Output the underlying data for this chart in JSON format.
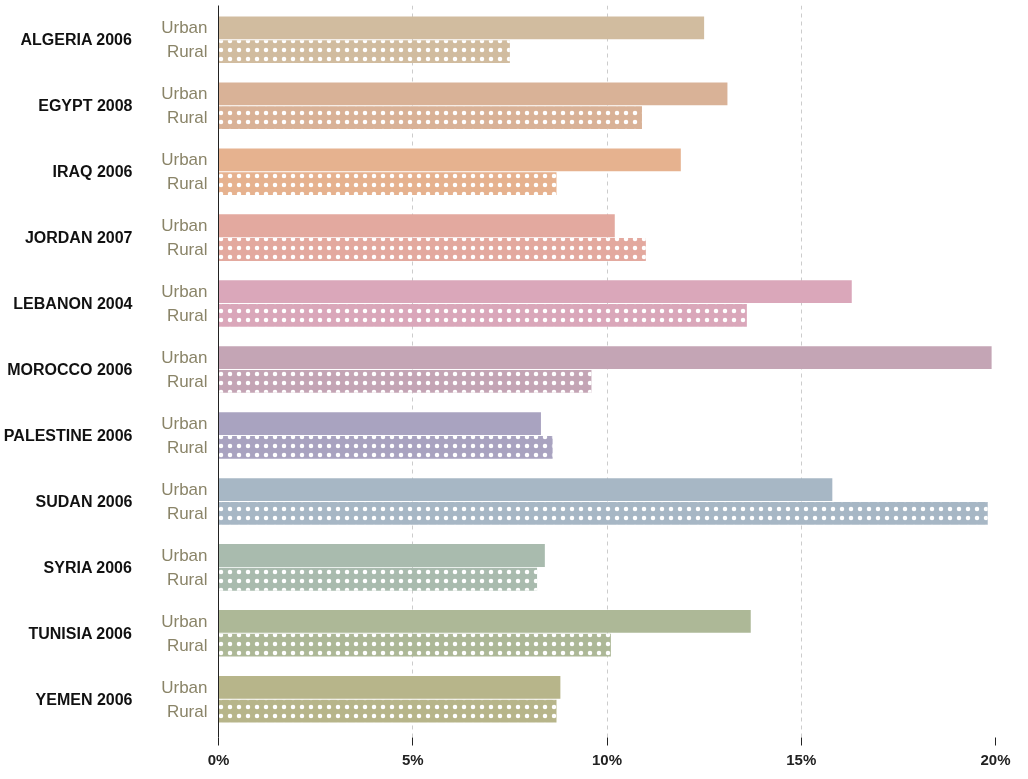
{
  "chart_data": {
    "type": "bar",
    "orientation": "horizontal",
    "categories": [
      "ALGERIA 2006",
      "EGYPT 2008",
      "IRAQ 2006",
      "JORDAN 2007",
      "LEBANON 2004",
      "MOROCCO 2006",
      "PALESTINE 2006",
      "SUDAN 2006",
      "SYRIA 2006",
      "TUNISIA 2006",
      "YEMEN 2006"
    ],
    "series": [
      {
        "name": "Urban",
        "colors": [
          "#d1bc9f",
          "#d9b297",
          "#e6b28f",
          "#e3a99f",
          "#daa7ba",
          "#c4a5b5",
          "#a9a3c0",
          "#a7b7c5",
          "#a9bbae",
          "#adb897",
          "#b7b58a"
        ],
        "values": [
          12.5,
          13.1,
          11.9,
          10.2,
          16.3,
          19.9,
          8.3,
          15.8,
          8.4,
          13.7,
          8.8
        ]
      },
      {
        "name": "Rural",
        "colors": [
          "#d1bc9f",
          "#d9b297",
          "#e6b28f",
          "#e3a99f",
          "#daa7ba",
          "#c4a5b5",
          "#a9a3c0",
          "#a7b7c5",
          "#a9bbae",
          "#adb897",
          "#b7b58a"
        ],
        "values": [
          7.5,
          10.9,
          8.7,
          11.0,
          13.6,
          9.6,
          8.6,
          19.8,
          8.2,
          10.1,
          8.7
        ]
      }
    ],
    "xlim": [
      0,
      20
    ],
    "xticks": [
      {
        "value": 0,
        "label": "0%"
      },
      {
        "value": 5,
        "label": "5%"
      },
      {
        "value": 10,
        "label": "10%"
      },
      {
        "value": 15,
        "label": "15%"
      },
      {
        "value": 20,
        "label": "20%"
      }
    ],
    "grid": "x"
  }
}
